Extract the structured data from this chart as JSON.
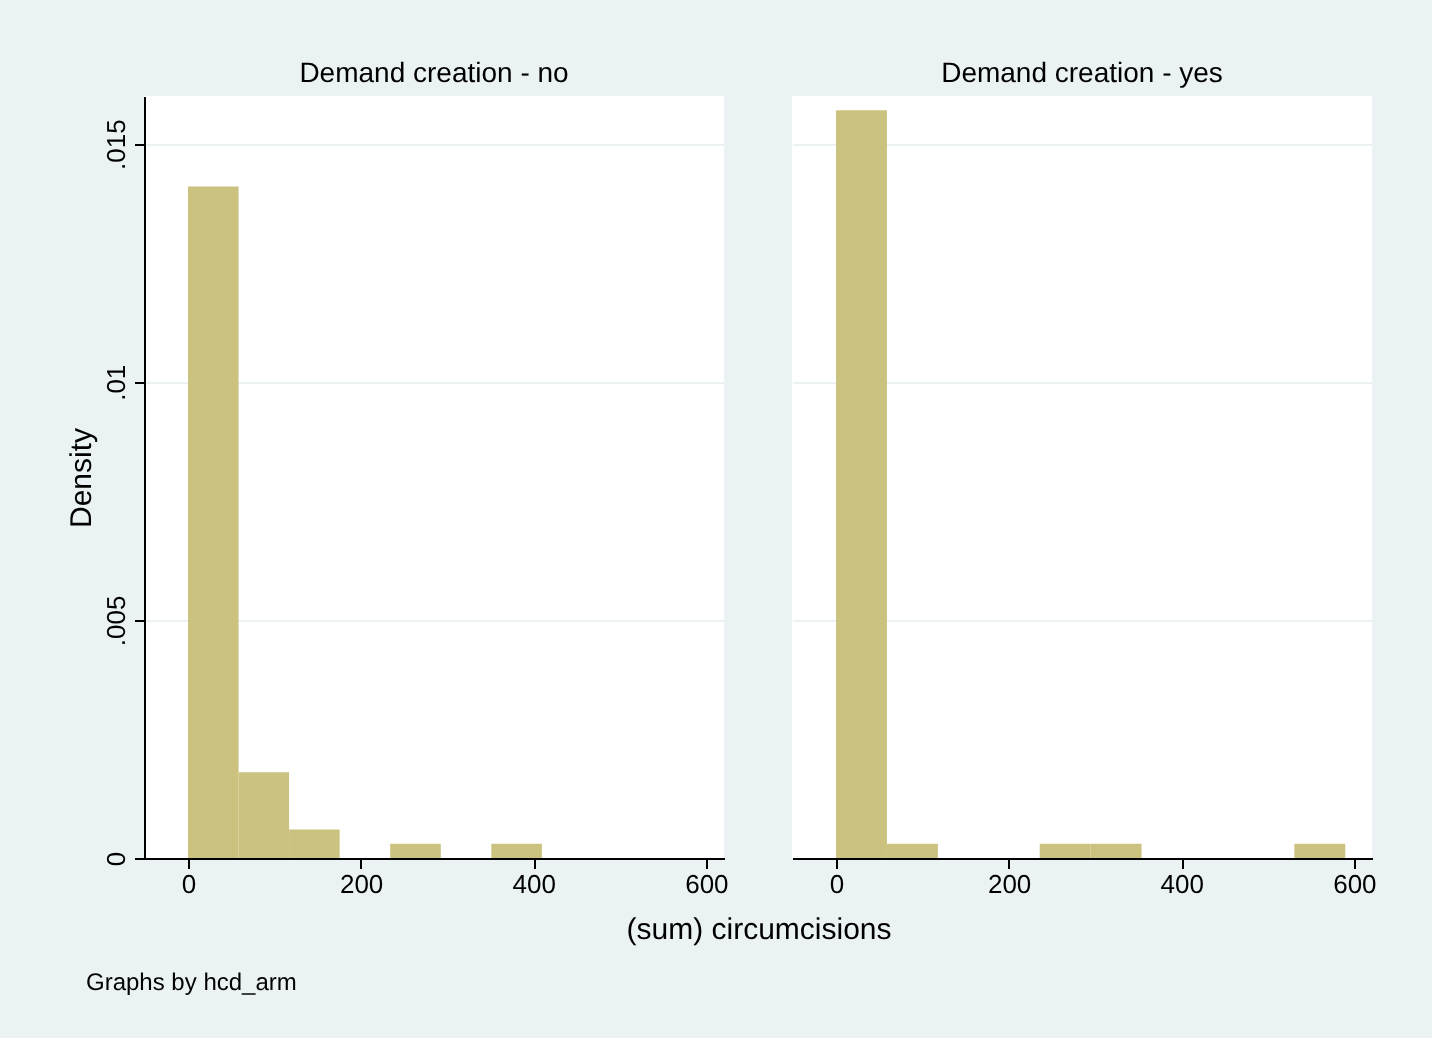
{
  "chart_data": [
    {
      "type": "histogram",
      "title": "Demand creation - no",
      "xlabel": "(sum) circumcisions",
      "ylabel": "Density",
      "annotations": [
        "Graphs by hcd_arm"
      ],
      "bins": [
        0,
        58.6,
        117.1,
        175.7,
        234.3,
        292.9,
        351.4,
        410
      ],
      "values": [
        0.0141,
        0.0018,
        0.0006,
        0,
        0.0003,
        0,
        0.0003
      ],
      "color": "#cbc280",
      "xlim": [
        -51,
        621
      ],
      "xticks": [
        0,
        200,
        400,
        600
      ],
      "ylim": [
        0,
        0.016
      ],
      "yticks": [
        0,
        {
          "value": 0.005,
          "label": ".005"
        },
        {
          "value": 0.01,
          "label": ".01"
        },
        {
          "value": 0.015,
          "label": ".015"
        }
      ],
      "grid": "y"
    },
    {
      "type": "histogram",
      "title": "Demand creation - yes",
      "bins": [
        0,
        59,
        118,
        177,
        236,
        295,
        354,
        413,
        472,
        531,
        590
      ],
      "values": [
        0.0157,
        0.0003,
        0,
        0,
        0.0003,
        0.0003,
        0,
        0,
        0,
        0.0003
      ],
      "color": "#cbc280",
      "xlim": [
        -51,
        621
      ],
      "xticks": [
        0,
        200,
        400,
        600
      ],
      "ylim": [
        0,
        0.016
      ],
      "yticks": [
        {
          "value": 0,
          "label": null
        },
        {
          "value": 0.005,
          "label": null
        },
        {
          "value": 0.01,
          "label": null
        },
        {
          "value": 0.015,
          "label": null
        }
      ],
      "grid": "y",
      "tick_labels": "x"
    }
  ]
}
